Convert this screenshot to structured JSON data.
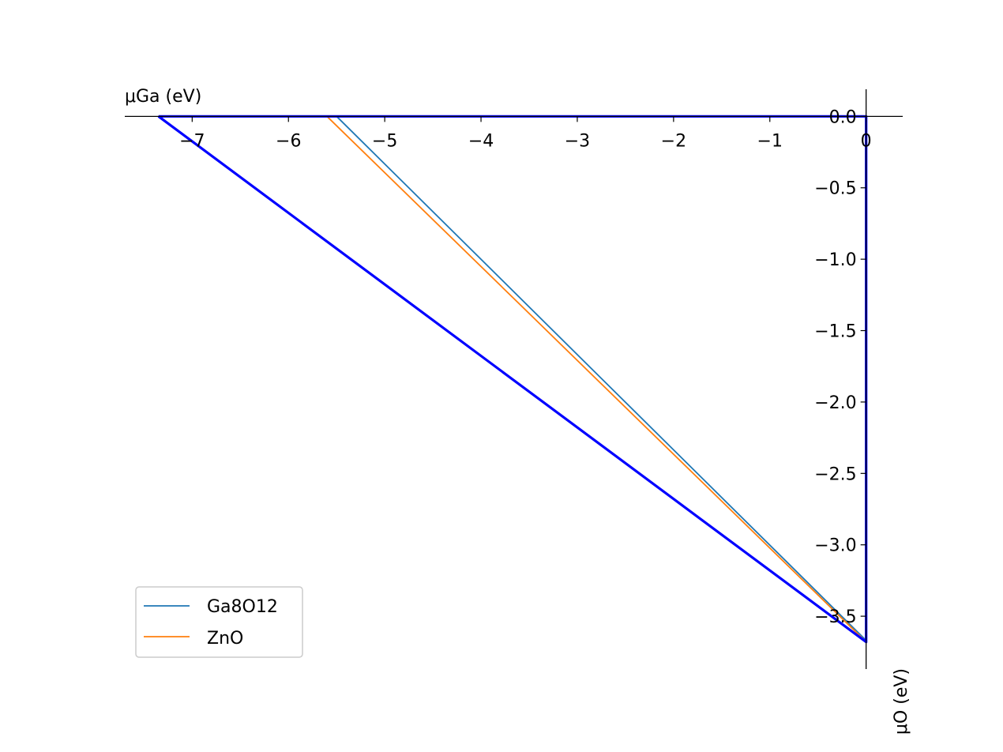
{
  "chart_data": {
    "type": "line",
    "xlabel": "μGa (eV)",
    "ylabel": "μO (eV)",
    "xlim": [
      -7.7,
      0.38
    ],
    "ylim": [
      -3.87,
      0.19
    ],
    "x_ticks": [
      {
        "value": -7,
        "label": "−7"
      },
      {
        "value": -6,
        "label": "−6"
      },
      {
        "value": -5,
        "label": "−5"
      },
      {
        "value": -4,
        "label": "−4"
      },
      {
        "value": -3,
        "label": "−3"
      },
      {
        "value": -2,
        "label": "−2"
      },
      {
        "value": -1,
        "label": "−1"
      },
      {
        "value": 0,
        "label": "0"
      }
    ],
    "y_ticks": [
      {
        "value": 0.0,
        "label": "0.0"
      },
      {
        "value": -0.5,
        "label": "−0.5"
      },
      {
        "value": -1.0,
        "label": "−1.0"
      },
      {
        "value": -1.5,
        "label": "−1.5"
      },
      {
        "value": -2.0,
        "label": "−2.0"
      },
      {
        "value": -2.5,
        "label": "−2.5"
      },
      {
        "value": -3.0,
        "label": "−3.0"
      },
      {
        "value": -3.5,
        "label": "−3.5"
      }
    ],
    "legend_position": "lower-left",
    "series": [
      {
        "name": "Ga8O12",
        "color": "#1f77b4",
        "x": [
          -5.5,
          0.0
        ],
        "y": [
          0.0,
          -3.67
        ]
      },
      {
        "name": "ZnO",
        "color": "#ff7f0e",
        "x": [
          -5.6,
          0.0
        ],
        "y": [
          0.0,
          -3.68
        ]
      }
    ],
    "region": {
      "color": "#0000ff",
      "x": [
        -7.35,
        0.0,
        0.0,
        -7.35
      ],
      "y": [
        0.0,
        0.0,
        -3.68,
        0.0
      ]
    }
  }
}
